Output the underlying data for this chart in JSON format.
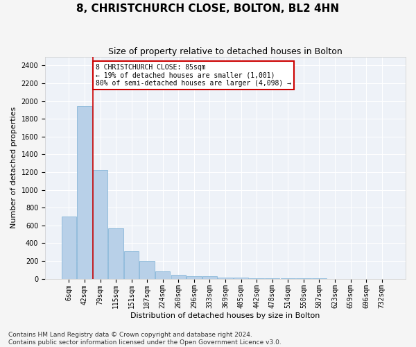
{
  "title": "8, CHRISTCHURCH CLOSE, BOLTON, BL2 4HN",
  "subtitle": "Size of property relative to detached houses in Bolton",
  "xlabel": "Distribution of detached houses by size in Bolton",
  "ylabel": "Number of detached properties",
  "bar_labels": [
    "6sqm",
    "42sqm",
    "79sqm",
    "115sqm",
    "151sqm",
    "187sqm",
    "224sqm",
    "260sqm",
    "296sqm",
    "333sqm",
    "369sqm",
    "405sqm",
    "442sqm",
    "478sqm",
    "514sqm",
    "550sqm",
    "587sqm",
    "623sqm",
    "659sqm",
    "696sqm",
    "732sqm"
  ],
  "bar_values": [
    700,
    1940,
    1220,
    570,
    310,
    200,
    80,
    40,
    30,
    25,
    15,
    10,
    5,
    3,
    2,
    1,
    1,
    0,
    0,
    0,
    0
  ],
  "bar_color": "#b8d0e8",
  "bar_edgecolor": "#7aafd4",
  "vline_color": "#cc0000",
  "vline_index": 2,
  "ylim": [
    0,
    2500
  ],
  "yticks": [
    0,
    200,
    400,
    600,
    800,
    1000,
    1200,
    1400,
    1600,
    1800,
    2000,
    2200,
    2400
  ],
  "annotation_text": "8 CHRISTCHURCH CLOSE: 85sqm\n← 19% of detached houses are smaller (1,001)\n80% of semi-detached houses are larger (4,098) →",
  "annotation_box_color": "#ffffff",
  "annotation_box_edgecolor": "#cc0000",
  "footer_text": "Contains HM Land Registry data © Crown copyright and database right 2024.\nContains public sector information licensed under the Open Government Licence v3.0.",
  "fig_bg_color": "#f5f5f5",
  "plot_bg_color": "#eef2f8",
  "grid_color": "#ffffff",
  "title_fontsize": 11,
  "subtitle_fontsize": 9,
  "axis_label_fontsize": 8,
  "tick_fontsize": 7,
  "annotation_fontsize": 7,
  "footer_fontsize": 6.5
}
